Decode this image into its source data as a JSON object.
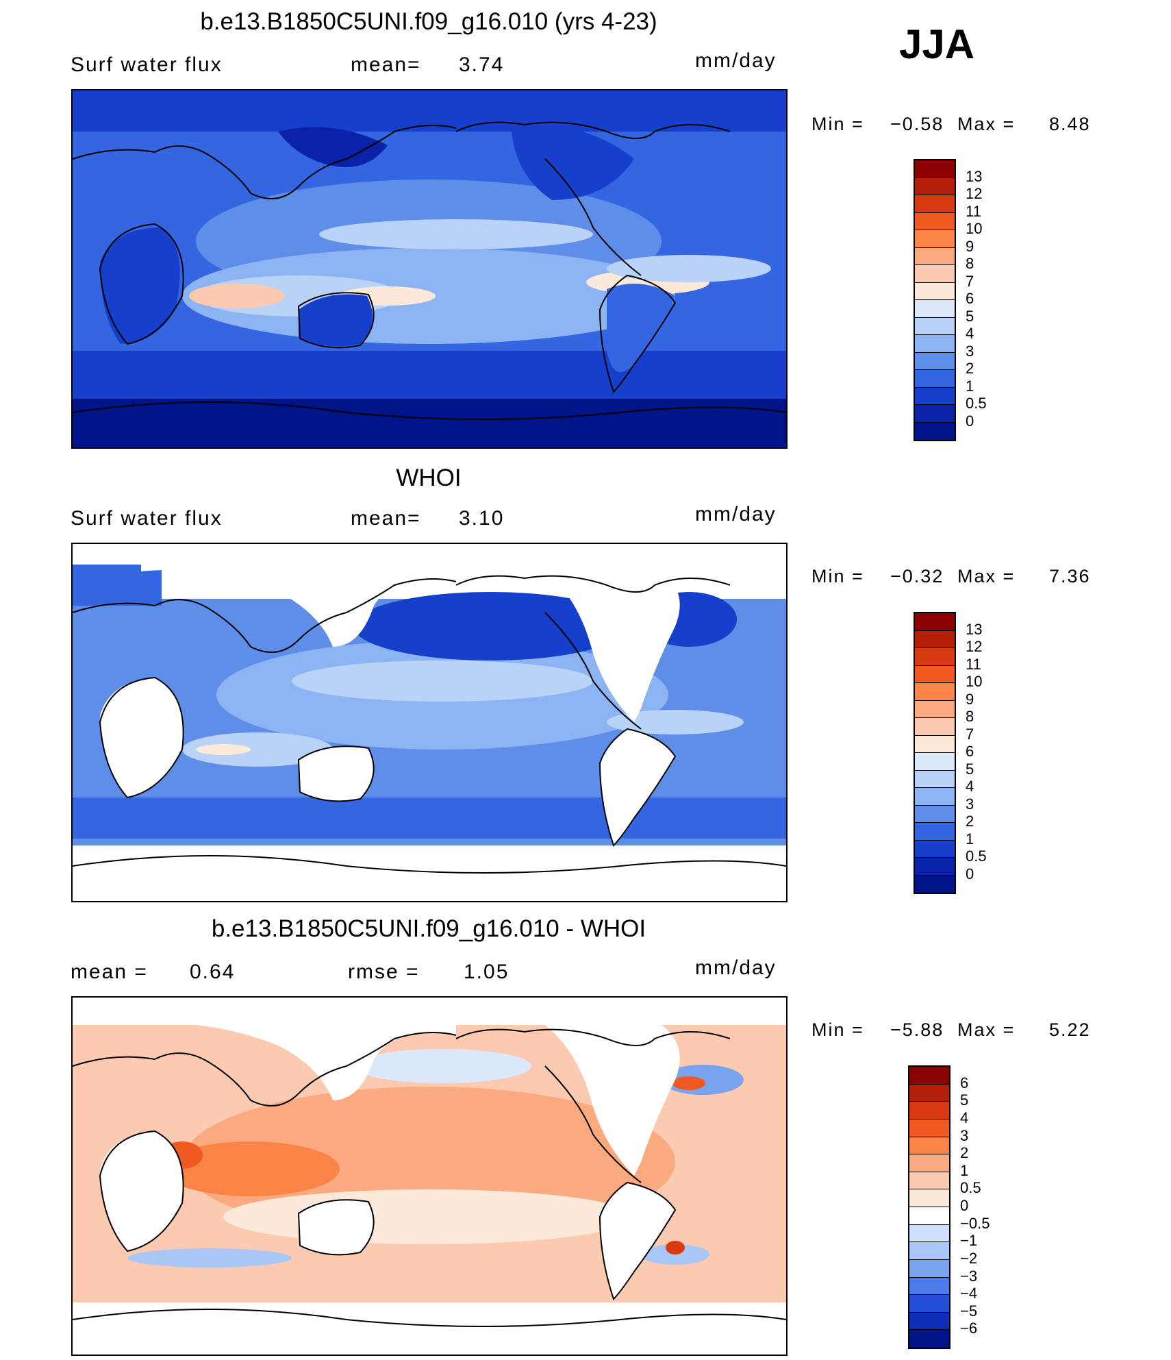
{
  "season": "JJA",
  "panels": [
    {
      "title": "b.e13.B1850C5UNI.f09_g16.010 (yrs 4-23)",
      "left_label": "Surf water flux",
      "mid_label": "mean=",
      "mid_value": "3.74",
      "right_label": "",
      "right_value": "",
      "units": "mm/day",
      "min_label": "Min =",
      "min_value": "−0.58",
      "max_label": "Max =",
      "max_value": "8.48",
      "map_kind": "model",
      "colorbar": {
        "ticks": [
          "13",
          "12",
          "11",
          "10",
          "9",
          "8",
          "7",
          "6",
          "5",
          "4",
          "3",
          "2",
          "1",
          "0.5",
          "0"
        ],
        "colors": [
          "#8b0000",
          "#b2200a",
          "#d93a12",
          "#f05a22",
          "#f98445",
          "#fbaa80",
          "#fccab0",
          "#fde9d9",
          "#dbe9fb",
          "#b8d2f8",
          "#8cb3f2",
          "#5f8ee8",
          "#3366e0",
          "#1640cc",
          "#0a22a8",
          "#001489"
        ]
      }
    },
    {
      "title": "WHOI",
      "left_label": "Surf water flux",
      "mid_label": "mean=",
      "mid_value": "3.10",
      "right_label": "",
      "right_value": "",
      "units": "mm/day",
      "min_label": "Min =",
      "min_value": "−0.32",
      "max_label": "Max =",
      "max_value": "7.36",
      "map_kind": "obs",
      "colorbar": {
        "ticks": [
          "13",
          "12",
          "11",
          "10",
          "9",
          "8",
          "7",
          "6",
          "5",
          "4",
          "3",
          "2",
          "1",
          "0.5",
          "0"
        ],
        "colors": [
          "#8b0000",
          "#b2200a",
          "#d93a12",
          "#f05a22",
          "#f98445",
          "#fbaa80",
          "#fccab0",
          "#fde9d9",
          "#dbe9fb",
          "#b8d2f8",
          "#8cb3f2",
          "#5f8ee8",
          "#3366e0",
          "#1640cc",
          "#0a22a8",
          "#001489"
        ]
      }
    },
    {
      "title": "b.e13.B1850C5UNI.f09_g16.010 - WHOI",
      "left_label": "mean =",
      "left_value": "0.64",
      "mid_label": "rmse =",
      "mid_value": "1.05",
      "units": "mm/day",
      "min_label": "Min =",
      "min_value": "−5.88",
      "max_label": "Max =",
      "max_value": "5.22",
      "map_kind": "diff",
      "colorbar": {
        "ticks": [
          "6",
          "5",
          "4",
          "3",
          "2",
          "1",
          "0.5",
          "0",
          "−0.5",
          "−1",
          "−2",
          "−3",
          "−4",
          "−5",
          "−6"
        ],
        "colors": [
          "#8b0000",
          "#b2200a",
          "#d93a12",
          "#f05a22",
          "#f98445",
          "#fbaa80",
          "#fccab0",
          "#fde9d9",
          "#ffffff",
          "#cfe0fb",
          "#a8c6f6",
          "#7aa3ef",
          "#4b7ae6",
          "#2350d6",
          "#0d2fb8",
          "#001489"
        ]
      }
    }
  ]
}
